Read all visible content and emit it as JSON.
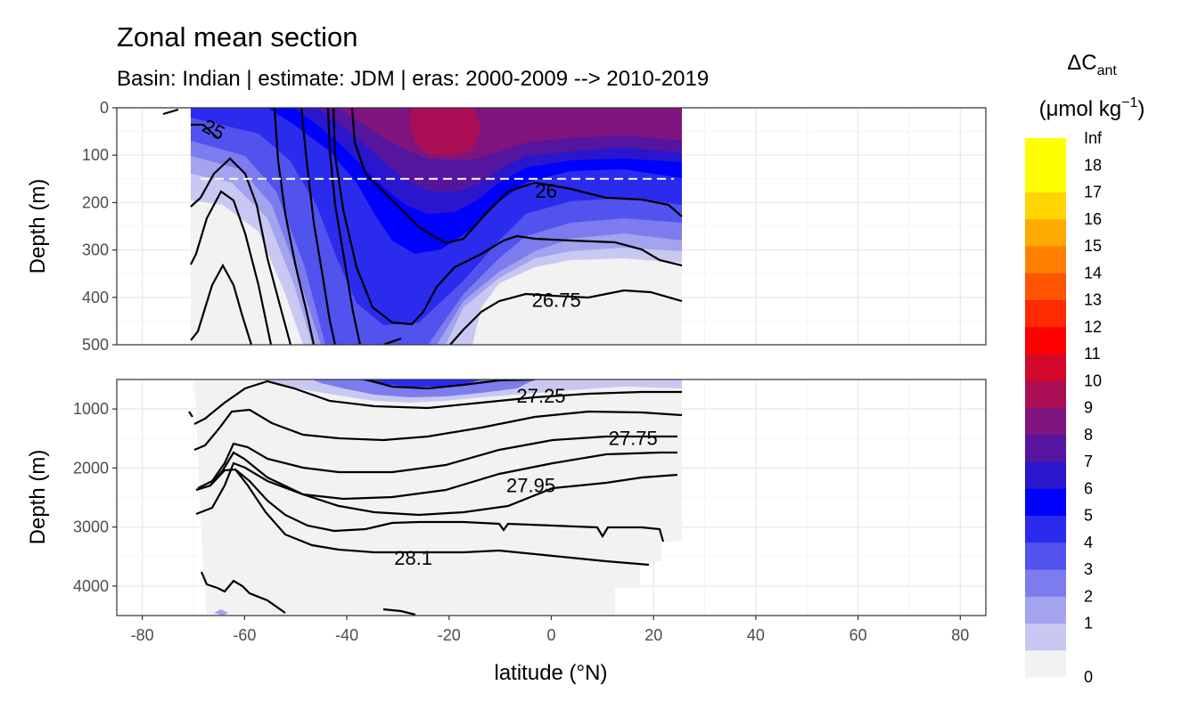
{
  "chart_data": {
    "type": "heatmap",
    "title": "Zonal mean section",
    "subtitle": "Basin: Indian | estimate: JDM  | eras: 2000-2009 --> 2010-2019",
    "xlabel": "latitude (°N)",
    "x_ticks": [
      -80,
      -60,
      -40,
      -20,
      0,
      20,
      40,
      60,
      80
    ],
    "xlim": [
      -85,
      85
    ],
    "panels": [
      {
        "ylabel": "Depth (m)",
        "y_ticks": [
          0,
          100,
          200,
          300,
          400,
          500
        ],
        "ylim": [
          500,
          0
        ],
        "reference_depth": 150,
        "contour_labels": [
          {
            "text": "25",
            "lat": -66,
            "depth": 45
          },
          {
            "text": "26",
            "lat": -1,
            "depth": 175
          },
          {
            "text": "26.75",
            "lat": 1,
            "depth": 405
          }
        ]
      },
      {
        "ylabel": "Depth (m)",
        "y_ticks": [
          1000,
          2000,
          3000,
          4000
        ],
        "ylim": [
          4500,
          500
        ],
        "contour_labels": [
          {
            "text": "27.25",
            "lat": -2,
            "depth": 770
          },
          {
            "text": "27.75",
            "lat": 16,
            "depth": 1490
          },
          {
            "text": "27.95",
            "lat": -4,
            "depth": 2290
          },
          {
            "text": "28.1",
            "lat": -27,
            "depth": 3520
          }
        ]
      }
    ],
    "data_lat_range": [
      -70,
      25
    ],
    "legend": {
      "title_main": "ΔC",
      "title_sub": "ant",
      "unit_prefix": "(μmol kg",
      "unit_exp": "−1",
      "unit_suffix": ")",
      "bins": [
        {
          "label": "0",
          "color": "#f2f2f2"
        },
        {
          "label": "1",
          "color": "#c8c8f2"
        },
        {
          "label": "2",
          "color": "#a3a3ee"
        },
        {
          "label": "3",
          "color": "#7c7cee"
        },
        {
          "label": "4",
          "color": "#5252ee"
        },
        {
          "label": "5",
          "color": "#2b2bee"
        },
        {
          "label": "6",
          "color": "#0000ff"
        },
        {
          "label": "7",
          "color": "#2a16cc"
        },
        {
          "label": "8",
          "color": "#55159f"
        },
        {
          "label": "9",
          "color": "#80147e"
        },
        {
          "label": "10",
          "color": "#aa0f55"
        },
        {
          "label": "11",
          "color": "#d4082a"
        },
        {
          "label": "12",
          "color": "#ff0000"
        },
        {
          "label": "13",
          "color": "#ff2a00"
        },
        {
          "label": "14",
          "color": "#ff5500"
        },
        {
          "label": "15",
          "color": "#ff8000"
        },
        {
          "label": "16",
          "color": "#ffaa00"
        },
        {
          "label": "17",
          "color": "#ffd400"
        },
        {
          "label": "18",
          "color": "#ffff00"
        },
        {
          "label": "Inf",
          "color": ""
        }
      ]
    }
  }
}
